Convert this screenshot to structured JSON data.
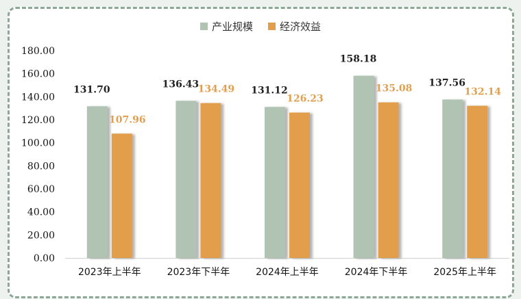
{
  "chart_data": {
    "type": "bar",
    "title": "",
    "xlabel": "",
    "ylabel": "",
    "categories": [
      "2023年上半年",
      "2023年下半年",
      "2024年上半年",
      "2024年下半年",
      "2025年上半年"
    ],
    "series": [
      {
        "name": "产业规模",
        "values": [
          131.7,
          136.43,
          131.12,
          158.18,
          137.56
        ],
        "color": "#b1c4b4",
        "label_color": "#222222"
      },
      {
        "name": "经济效益",
        "values": [
          107.96,
          134.49,
          126.23,
          135.08,
          132.14
        ],
        "color": "#e39e4b",
        "label_color": "#e0a050"
      }
    ],
    "ylim": [
      0,
      180
    ],
    "yticks": [
      "0.00",
      "20.00",
      "40.00",
      "60.00",
      "80.00",
      "100.00",
      "120.00",
      "140.00",
      "160.00",
      "180.00"
    ],
    "grid": false,
    "legend_position": "top-center"
  }
}
